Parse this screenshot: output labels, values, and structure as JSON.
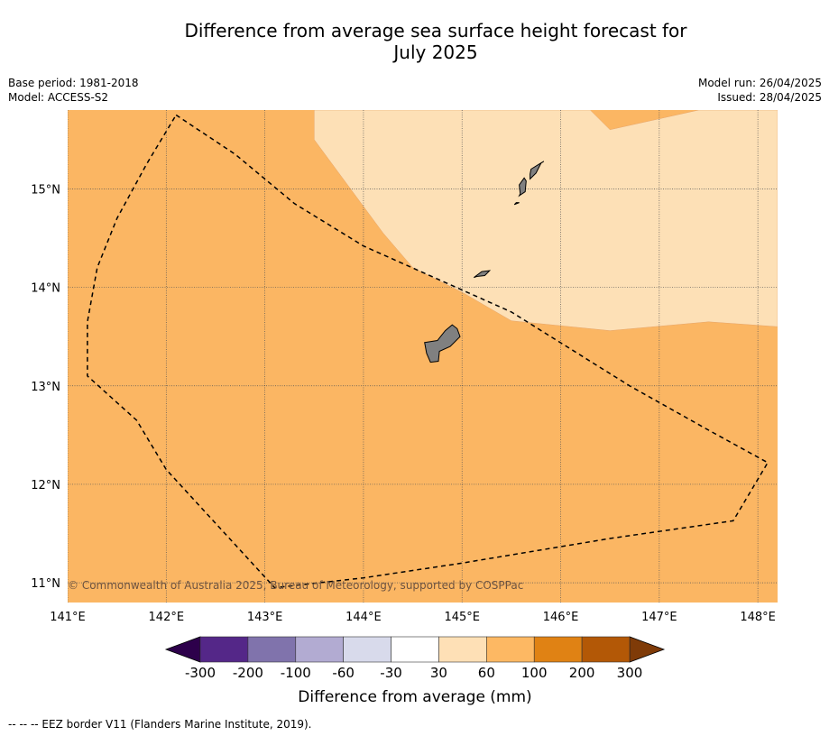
{
  "title_line1": "Difference from average sea surface height forecast for",
  "title_line2": "July 2025",
  "meta_left": {
    "base_period": "Base period: 1981-2018",
    "model": "Model: ACCESS-S2"
  },
  "meta_right": {
    "model_run": "Model run: 26/04/2025",
    "issued": "Issued: 28/04/2025"
  },
  "map": {
    "lon_range": [
      141.0,
      148.2
    ],
    "lat_range": [
      10.8,
      15.8
    ],
    "lon_ticks": [
      {
        "v": 141,
        "label": "141°E"
      },
      {
        "v": 142,
        "label": "142°E"
      },
      {
        "v": 143,
        "label": "143°E"
      },
      {
        "v": 144,
        "label": "144°E"
      },
      {
        "v": 145,
        "label": "145°E"
      },
      {
        "v": 146,
        "label": "146°E"
      },
      {
        "v": 147,
        "label": "147°E"
      },
      {
        "v": 148,
        "label": "148°E"
      }
    ],
    "lat_ticks": [
      {
        "v": 15,
        "label": "15°N"
      },
      {
        "v": 14,
        "label": "14°N"
      },
      {
        "v": 13,
        "label": "13°N"
      },
      {
        "v": 12,
        "label": "12°N"
      },
      {
        "v": 11,
        "label": "11°N"
      }
    ],
    "colors": {
      "base_fill": "#fbb663",
      "light_fill": "#fde0b6",
      "land": "#808080"
    },
    "base_band": "60 to 100 mm",
    "light_band": "30 to 60 mm",
    "light_region": [
      [
        143.5,
        15.8
      ],
      [
        144.0,
        15.8
      ],
      [
        144.4,
        15.8
      ],
      [
        145.4,
        15.8
      ],
      [
        146.3,
        15.8
      ],
      [
        146.5,
        15.6
      ],
      [
        147.4,
        15.8
      ],
      [
        148.2,
        15.8
      ],
      [
        148.2,
        13.6
      ],
      [
        147.5,
        13.65
      ],
      [
        146.5,
        13.56
      ],
      [
        145.5,
        13.66
      ],
      [
        145.0,
        13.95
      ],
      [
        144.5,
        14.2
      ],
      [
        144.2,
        14.55
      ],
      [
        143.5,
        15.5
      ]
    ],
    "islands": [
      {
        "name": "Guam",
        "coords": [
          [
            144.62,
            13.44
          ],
          [
            144.75,
            13.46
          ],
          [
            144.83,
            13.56
          ],
          [
            144.9,
            13.62
          ],
          [
            144.95,
            13.58
          ],
          [
            144.98,
            13.5
          ],
          [
            144.88,
            13.4
          ],
          [
            144.77,
            13.35
          ],
          [
            144.76,
            13.25
          ],
          [
            144.68,
            13.24
          ],
          [
            144.64,
            13.33
          ],
          [
            144.62,
            13.44
          ]
        ]
      },
      {
        "name": "Rota",
        "coords": [
          [
            145.12,
            14.1
          ],
          [
            145.2,
            14.16
          ],
          [
            145.28,
            14.17
          ],
          [
            145.23,
            14.12
          ],
          [
            145.15,
            14.11
          ],
          [
            145.12,
            14.1
          ]
        ]
      },
      {
        "name": "Tinian",
        "coords": [
          [
            145.58,
            14.93
          ],
          [
            145.64,
            14.97
          ],
          [
            145.65,
            15.08
          ],
          [
            145.63,
            15.11
          ],
          [
            145.58,
            15.04
          ],
          [
            145.59,
            14.95
          ],
          [
            145.58,
            14.93
          ]
        ]
      },
      {
        "name": "Saipan",
        "coords": [
          [
            145.69,
            15.1
          ],
          [
            145.75,
            15.16
          ],
          [
            145.8,
            15.26
          ],
          [
            145.83,
            15.28
          ],
          [
            145.78,
            15.25
          ],
          [
            145.7,
            15.2
          ],
          [
            145.69,
            15.15
          ],
          [
            145.69,
            15.1
          ]
        ]
      },
      {
        "name": "Aguijan",
        "coords": [
          [
            145.53,
            14.84
          ],
          [
            145.58,
            14.86
          ],
          [
            145.55,
            14.86
          ],
          [
            145.53,
            14.84
          ]
        ]
      }
    ],
    "eez_border": [
      [
        142.1,
        15.75
      ],
      [
        142.7,
        15.35
      ],
      [
        143.3,
        14.85
      ],
      [
        144.0,
        14.42
      ],
      [
        145.5,
        13.75
      ],
      [
        146.7,
        13.0
      ],
      [
        147.5,
        12.55
      ],
      [
        148.1,
        12.22
      ],
      [
        147.75,
        11.63
      ],
      [
        146.5,
        11.45
      ],
      [
        145.0,
        11.2
      ],
      [
        144.0,
        11.05
      ],
      [
        143.1,
        10.95
      ],
      [
        142.0,
        12.15
      ],
      [
        141.7,
        12.65
      ],
      [
        141.2,
        13.1
      ],
      [
        141.2,
        13.65
      ],
      [
        141.3,
        14.2
      ],
      [
        141.5,
        14.7
      ],
      [
        141.8,
        15.25
      ],
      [
        142.1,
        15.75
      ]
    ]
  },
  "copyright": "© Commonwealth of Australia 2025, Bureau of Meteorology, supported by COSPPac",
  "colorbar": {
    "label": "Difference from average (mm)",
    "below_color": "#2d004b",
    "above_color": "#7f3b08",
    "bins": [
      "#542788",
      "#8073ac",
      "#b2abd2",
      "#d8daeb",
      "#ffffff",
      "#fee0b6",
      "#fdb863",
      "#e08214",
      "#b35806"
    ],
    "tick_labels": [
      "-300",
      "-200",
      "-100",
      "-60",
      "-30",
      "30",
      "60",
      "100",
      "200",
      "300"
    ]
  },
  "footer": "-- -- -- EEZ border V11 (Flanders Marine Institute, 2019)."
}
